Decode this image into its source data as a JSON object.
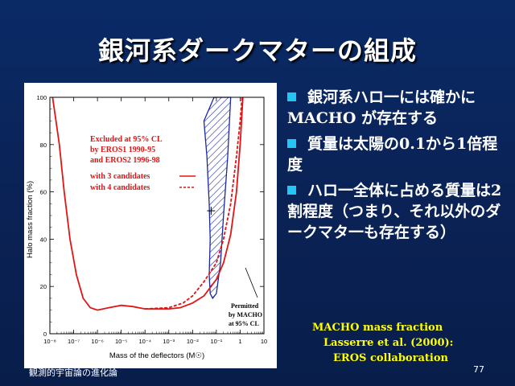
{
  "slide": {
    "title": "銀河系ダークマターの組成",
    "footer_left": "観測的宇宙論の進化論",
    "page_number": "77"
  },
  "bullets": [
    "銀河系ハロ一には確かにMACHO が存在する",
    "質量は太陽の0.1から1倍程度",
    "ハロ一全体に占める質量は2割程度（つまり、それ以外のダークマタ一も存在する）"
  ],
  "caption": {
    "line1": "MACHO mass   fraction",
    "line2": "Lasserre et al. (2000):",
    "line3": "EROS collaboration"
  },
  "colors": {
    "background": "#0a2255",
    "bullet_marker": "#22c8f2",
    "caption_text": "#ffff00",
    "exclusion_curve": "#e01515",
    "permitted_region": "#1a28a0"
  },
  "chart_data": {
    "type": "line",
    "xlabel": "Mass of the deflectors (M☉)",
    "ylabel": "Halo mass fraction (%)",
    "x_scale": "log",
    "xlim": [
      1e-08,
      10
    ],
    "ylim": [
      0,
      100
    ],
    "x_ticks": [
      "10⁻⁸",
      "10⁻⁷",
      "10⁻⁶",
      "10⁻⁵",
      "10⁻⁴",
      "10⁻³",
      "10⁻²",
      "10⁻¹",
      "1",
      "10"
    ],
    "y_ticks": [
      "0",
      "20",
      "40",
      "60",
      "80",
      "100"
    ],
    "legend": {
      "excluded_label": "Excluded at 95% CL",
      "survey1": "by   EROS1 1990-95",
      "survey2": "and EROS2 1996-98",
      "solid_label": "with 3 candidates",
      "dashed_label": "with 4 candidates"
    },
    "annotation": {
      "line1": "Permitted",
      "line2": "by MACHO",
      "line3": "at 95% CL"
    },
    "series": [
      {
        "name": "with 3 candidates",
        "style": "solid",
        "points": [
          [
            1.3e-08,
            100
          ],
          [
            2.5e-08,
            80
          ],
          [
            4e-08,
            60
          ],
          [
            7e-08,
            40
          ],
          [
            1.3e-07,
            25
          ],
          [
            2.5e-07,
            15
          ],
          [
            5e-07,
            11
          ],
          [
            1e-06,
            10
          ],
          [
            3e-06,
            11
          ],
          [
            1e-05,
            12
          ],
          [
            3e-05,
            11.5
          ],
          [
            0.0001,
            10.5
          ],
          [
            0.001,
            10.5
          ],
          [
            0.003,
            11
          ],
          [
            0.01,
            13
          ],
          [
            0.03,
            16
          ],
          [
            0.1,
            23
          ],
          [
            0.2,
            30
          ],
          [
            0.4,
            42
          ],
          [
            0.7,
            60
          ],
          [
            1.0,
            80
          ],
          [
            1.3,
            100
          ]
        ]
      },
      {
        "name": "with 4 candidates",
        "style": "dashed",
        "points": [
          [
            0.0001,
            10.5
          ],
          [
            0.001,
            11
          ],
          [
            0.004,
            13
          ],
          [
            0.01,
            16
          ],
          [
            0.03,
            22
          ],
          [
            0.1,
            30
          ],
          [
            0.2,
            40
          ],
          [
            0.4,
            55
          ],
          [
            0.7,
            75
          ],
          [
            1.0,
            90
          ],
          [
            1.2,
            100
          ]
        ]
      }
    ],
    "permitted_region": [
      [
        0.03,
        90
      ],
      [
        0.04,
        75
      ],
      [
        0.05,
        55
      ],
      [
        0.055,
        40
      ],
      [
        0.05,
        25
      ],
      [
        0.055,
        17
      ],
      [
        0.07,
        15
      ],
      [
        0.1,
        17
      ],
      [
        0.15,
        30
      ],
      [
        0.2,
        50
      ],
      [
        0.3,
        75
      ],
      [
        0.4,
        100
      ],
      [
        0.08,
        100
      ]
    ],
    "best_fit_point": [
      0.06,
      52
    ]
  }
}
